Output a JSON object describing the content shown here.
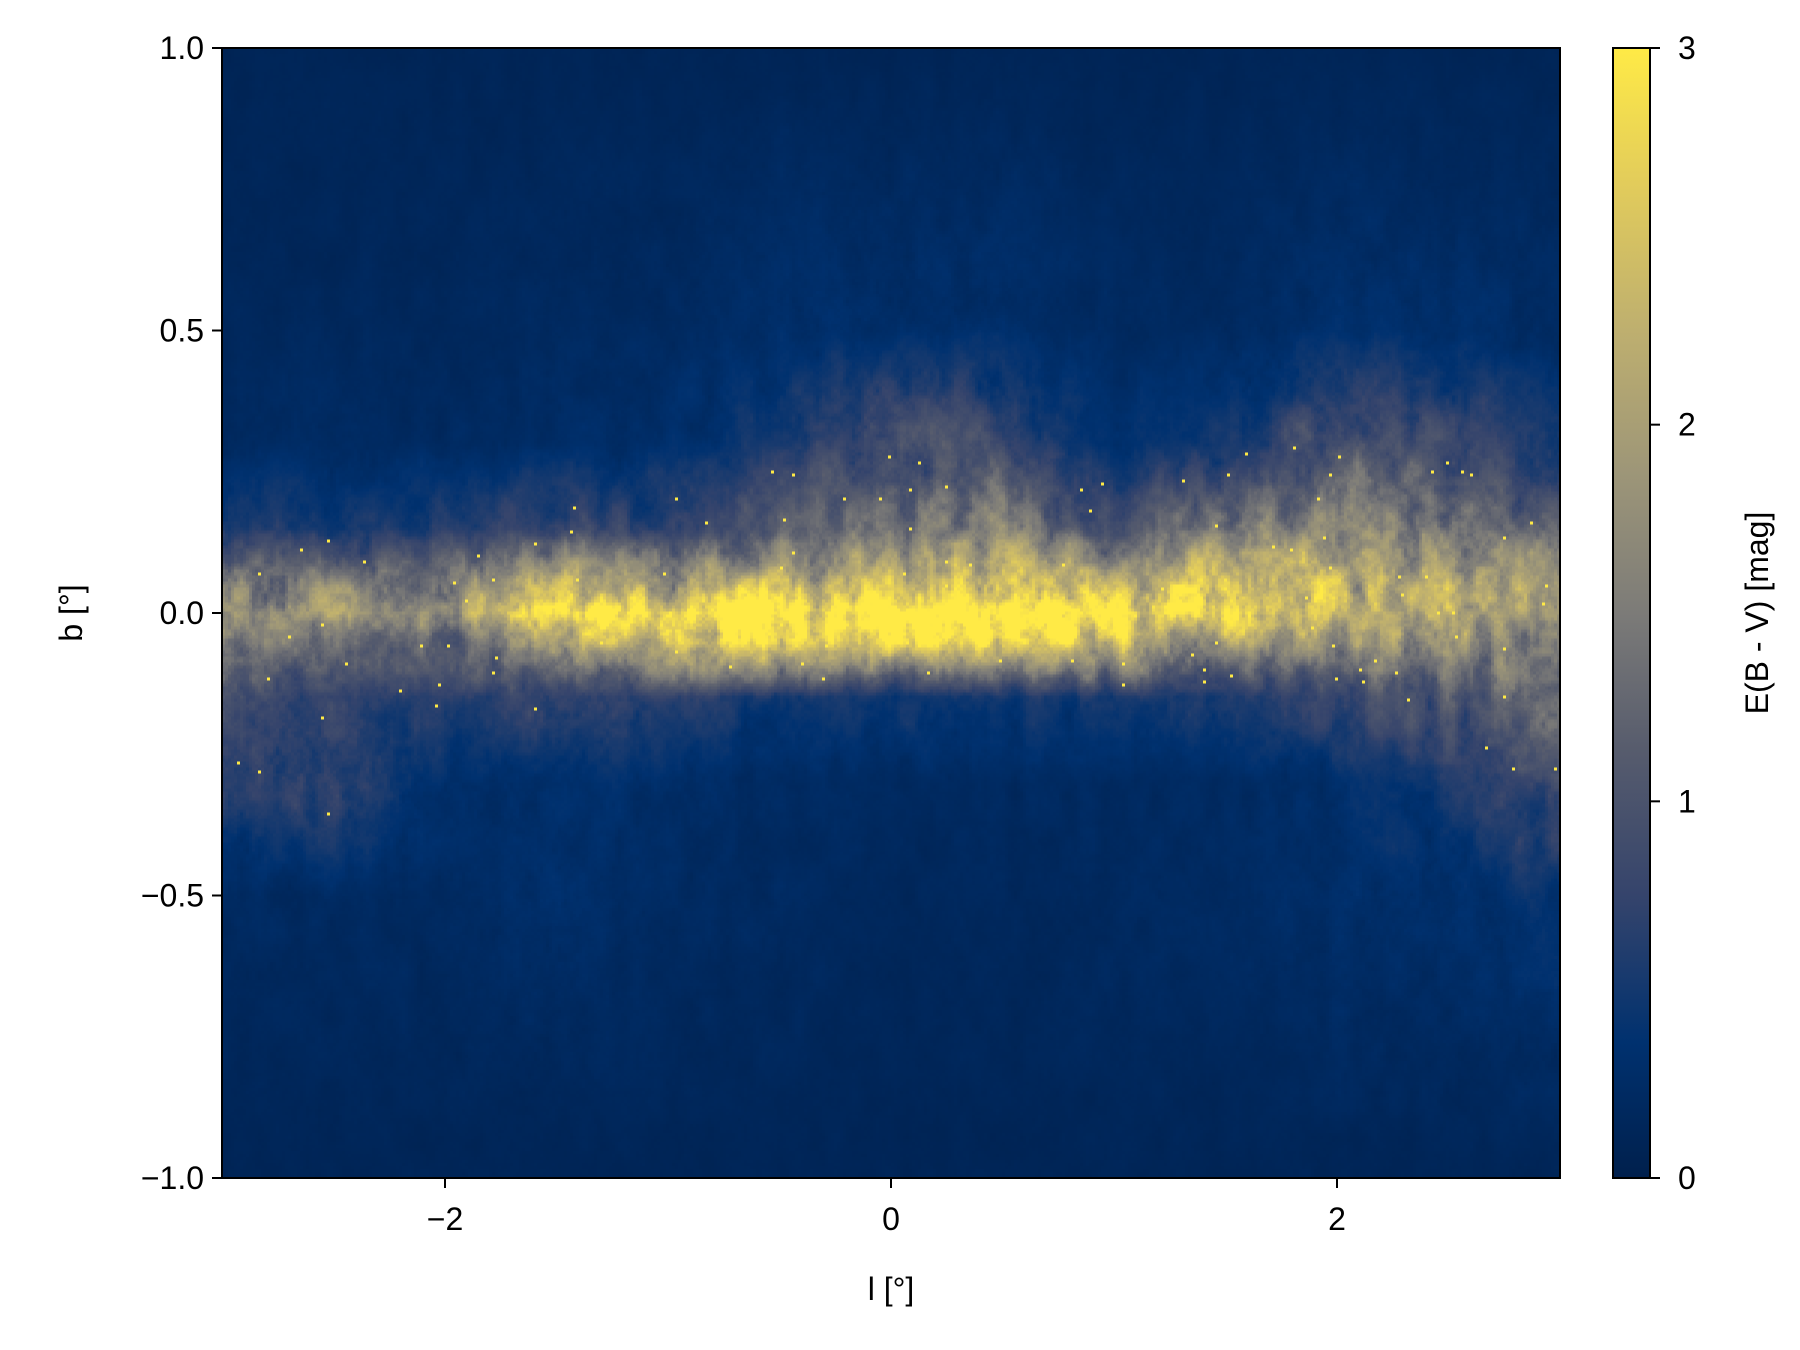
{
  "chart_data": {
    "type": "heatmap",
    "xlabel": "l [°]",
    "ylabel": "b [°]",
    "xlim": [
      -3,
      3
    ],
    "ylim": [
      -1,
      1
    ],
    "xticks": [
      {
        "v": -2,
        "label": "−2"
      },
      {
        "v": 0,
        "label": "0"
      },
      {
        "v": 2,
        "label": "2"
      }
    ],
    "yticks": [
      {
        "v": 1,
        "label": "1.0"
      },
      {
        "v": 0.5,
        "label": "0.5"
      },
      {
        "v": 0,
        "label": "0.0"
      },
      {
        "v": -0.5,
        "label": "−0.5"
      },
      {
        "v": -1,
        "label": "−1.0"
      }
    ],
    "colorbar": {
      "label": "E(B - V) [mag]",
      "colormap": "cividis",
      "range": [
        0,
        3
      ],
      "ticks": [
        {
          "v": 0,
          "label": "0"
        },
        {
          "v": 1,
          "label": "1"
        },
        {
          "v": 2,
          "label": "2"
        },
        {
          "v": 3,
          "label": "3"
        }
      ]
    },
    "grid": false,
    "approx_grid": {
      "l": [
        -3,
        -2.5,
        -2,
        -1.5,
        -1,
        -0.5,
        0,
        0.5,
        1,
        1.5,
        2,
        2.5,
        3
      ],
      "b": [
        1.0,
        0.5,
        0.3,
        0.15,
        0.05,
        0,
        -0.05,
        -0.15,
        -0.3,
        -0.5,
        -1.0
      ],
      "values": [
        [
          0.1,
          0.1,
          0.1,
          0.1,
          0.1,
          0.1,
          0.1,
          0.1,
          0.1,
          0.1,
          0.1,
          0.1,
          0.1
        ],
        [
          0.15,
          0.15,
          0.15,
          0.2,
          0.2,
          0.3,
          0.3,
          0.3,
          0.2,
          0.2,
          0.3,
          0.3,
          0.25
        ],
        [
          0.2,
          0.25,
          0.2,
          0.25,
          0.3,
          0.5,
          1.0,
          0.8,
          0.3,
          0.5,
          1.0,
          0.8,
          0.5
        ],
        [
          0.6,
          0.5,
          0.6,
          0.8,
          0.7,
          1.0,
          1.3,
          1.5,
          0.9,
          1.4,
          1.6,
          1.5,
          1.0
        ],
        [
          1.6,
          1.5,
          1.6,
          2.2,
          2.0,
          2.2,
          2.3,
          2.4,
          2.2,
          2.6,
          2.2,
          2.0,
          1.8
        ],
        [
          1.8,
          1.8,
          2.0,
          2.8,
          3.0,
          3.0,
          3.0,
          3.0,
          3.0,
          2.8,
          2.2,
          2.0,
          1.8
        ],
        [
          1.4,
          1.3,
          1.2,
          2.0,
          2.3,
          2.6,
          2.6,
          2.5,
          2.3,
          1.8,
          1.8,
          1.8,
          1.5
        ],
        [
          0.9,
          0.7,
          0.6,
          0.8,
          0.6,
          0.5,
          0.5,
          0.5,
          0.5,
          0.6,
          0.8,
          1.0,
          1.2
        ],
        [
          0.6,
          0.8,
          0.3,
          0.3,
          0.3,
          0.2,
          0.2,
          0.2,
          0.2,
          0.2,
          0.3,
          0.5,
          0.9
        ],
        [
          0.2,
          0.2,
          0.2,
          0.3,
          0.2,
          0.2,
          0.15,
          0.15,
          0.2,
          0.2,
          0.3,
          0.3,
          0.4
        ],
        [
          0.1,
          0.1,
          0.1,
          0.1,
          0.1,
          0.1,
          0.1,
          0.1,
          0.1,
          0.1,
          0.1,
          0.1,
          0.1
        ]
      ]
    }
  }
}
